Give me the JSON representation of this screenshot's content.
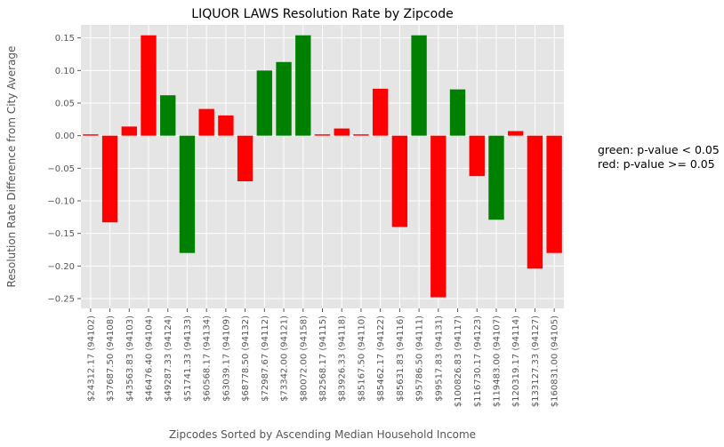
{
  "chart_data": {
    "type": "bar",
    "title": "LIQUOR LAWS Resolution Rate by Zipcode",
    "xlabel": "Zipcodes Sorted by Ascending Median Household Income",
    "ylabel": "Resolution Rate Difference from City Average",
    "ylim": [
      -0.265,
      0.17
    ],
    "yticks": [
      -0.25,
      -0.2,
      -0.15,
      -0.1,
      -0.05,
      0.0,
      0.05,
      0.1,
      0.15
    ],
    "ytick_labels": [
      "−0.25",
      "−0.20",
      "−0.15",
      "−0.10",
      "−0.05",
      "0.00",
      "0.05",
      "0.10",
      "0.15"
    ],
    "grid": true,
    "categories": [
      "$24312.17 (94102)",
      "$37687.50 (94108)",
      "$43563.83 (94103)",
      "$46476.40 (94104)",
      "$49287.33 (94124)",
      "$51741.33 (94133)",
      "$60568.17 (94134)",
      "$63039.17 (94109)",
      "$68778.50 (94132)",
      "$72987.67 (94112)",
      "$73342.00 (94121)",
      "$80072.00 (94158)",
      "$82568.17 (94115)",
      "$83926.33 (94118)",
      "$85167.50 (94110)",
      "$85462.17 (94122)",
      "$85631.83 (94116)",
      "$95786.50 (94111)",
      "$99517.83 (94131)",
      "$100826.83 (94117)",
      "$116730.17 (94123)",
      "$119483.00 (94107)",
      "$120319.17 (94114)",
      "$133127.33 (94127)",
      "$160831.00 (94105)"
    ],
    "values": [
      0.002,
      -0.133,
      0.014,
      0.154,
      0.062,
      -0.18,
      0.041,
      0.031,
      -0.07,
      0.1,
      0.113,
      0.154,
      0.002,
      0.011,
      0.002,
      0.072,
      -0.14,
      0.154,
      -0.248,
      0.071,
      -0.062,
      -0.129,
      0.007,
      -0.204,
      -0.18
    ],
    "significant": [
      false,
      false,
      false,
      false,
      true,
      true,
      false,
      false,
      false,
      true,
      true,
      true,
      false,
      false,
      false,
      false,
      false,
      true,
      false,
      true,
      false,
      true,
      false,
      false,
      false
    ],
    "colors": {
      "significant": "#008000",
      "not_significant": "#ff0000"
    },
    "legend": [
      "green: p-value < 0.05",
      "red: p-value >= 0.05"
    ],
    "legend_placement": "right"
  }
}
